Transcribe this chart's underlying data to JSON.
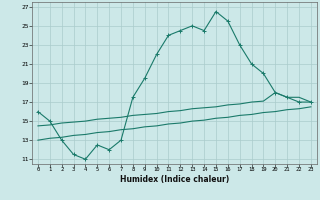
{
  "xlabel": "Humidex (Indice chaleur)",
  "background_color": "#cce8e8",
  "grid_color": "#aacccc",
  "line_color": "#1a7a6a",
  "xlim": [
    -0.5,
    23.5
  ],
  "ylim": [
    10.5,
    27.5
  ],
  "xticks": [
    0,
    1,
    2,
    3,
    4,
    5,
    6,
    7,
    8,
    9,
    10,
    11,
    12,
    13,
    14,
    15,
    16,
    17,
    18,
    19,
    20,
    21,
    22,
    23
  ],
  "yticks": [
    11,
    13,
    15,
    17,
    19,
    21,
    23,
    25,
    27
  ],
  "line1_x": [
    0,
    1,
    2,
    3,
    4,
    5,
    6,
    7,
    8,
    9,
    10,
    11,
    12,
    13,
    14,
    15,
    16,
    17,
    18,
    19,
    20,
    21,
    22,
    23
  ],
  "line1_y": [
    16.0,
    15.0,
    13.0,
    11.5,
    11.0,
    12.5,
    12.0,
    13.0,
    17.5,
    19.5,
    22.0,
    24.0,
    24.5,
    25.0,
    24.5,
    26.5,
    25.5,
    23.0,
    21.0,
    20.0,
    18.0,
    17.5,
    17.0,
    17.0
  ],
  "line2_x": [
    0,
    1,
    2,
    3,
    4,
    5,
    6,
    7,
    8,
    9,
    10,
    11,
    12,
    13,
    14,
    15,
    16,
    17,
    18,
    19,
    20,
    21,
    22,
    23
  ],
  "line2_y": [
    13.0,
    13.2,
    13.3,
    13.5,
    13.6,
    13.8,
    13.9,
    14.1,
    14.2,
    14.4,
    14.5,
    14.7,
    14.8,
    15.0,
    15.1,
    15.3,
    15.4,
    15.6,
    15.7,
    15.9,
    16.0,
    16.2,
    16.3,
    16.5
  ],
  "line3_x": [
    0,
    1,
    2,
    3,
    4,
    5,
    6,
    7,
    8,
    9,
    10,
    11,
    12,
    13,
    14,
    15,
    16,
    17,
    18,
    19,
    20,
    21,
    22,
    23
  ],
  "line3_y": [
    14.5,
    14.6,
    14.8,
    14.9,
    15.0,
    15.2,
    15.3,
    15.4,
    15.6,
    15.7,
    15.8,
    16.0,
    16.1,
    16.3,
    16.4,
    16.5,
    16.7,
    16.8,
    17.0,
    17.1,
    18.0,
    17.5,
    17.5,
    17.0
  ]
}
